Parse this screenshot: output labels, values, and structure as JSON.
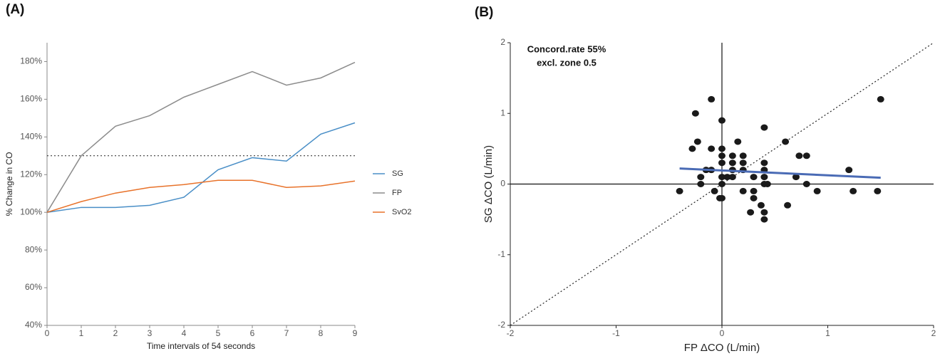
{
  "chart_data": [
    {
      "type": "line",
      "panel_label": "(A)",
      "x_label": "Time intervals of 54 seconds",
      "y_label": "% Change in CO",
      "x": [
        0,
        1,
        2,
        3,
        4,
        5,
        6,
        7,
        8,
        9
      ],
      "series": [
        {
          "name": "SG",
          "color": "#4a8fc7",
          "values": [
            100,
            102.6,
            102.6,
            103.7,
            108,
            122.6,
            129,
            127.2,
            141.5,
            147.5
          ]
        },
        {
          "name": "FP",
          "color": "#8c8c8c",
          "values": [
            100,
            130,
            145.7,
            151.3,
            161.1,
            167.9,
            174.7,
            167.5,
            171.3,
            179.6
          ]
        },
        {
          "name": "SvO2",
          "color": "#e8722a",
          "values": [
            100,
            105.7,
            110.2,
            113.2,
            114.7,
            117,
            117,
            113.2,
            114,
            116.6
          ]
        }
      ],
      "reference_line": 130,
      "xlim": [
        0,
        9
      ],
      "xticks": [
        0,
        1,
        2,
        3,
        4,
        5,
        6,
        7,
        8,
        9
      ],
      "ylim": [
        40,
        190
      ],
      "yticks": [
        {
          "value": 40,
          "label": "40%"
        },
        {
          "value": 60,
          "label": "60%"
        },
        {
          "value": 80,
          "label": "80%"
        },
        {
          "value": 100,
          "label": "100%"
        },
        {
          "value": 120,
          "label": "120%"
        },
        {
          "value": 140,
          "label": "140%"
        },
        {
          "value": 160,
          "label": "160%"
        },
        {
          "value": 180,
          "label": "180%"
        }
      ],
      "legend": "right"
    },
    {
      "type": "scatter",
      "panel_label": "(B)",
      "x_label": "FP ΔCO (L/min)",
      "y_label": "SG ΔCO (L/min)",
      "annotations": [
        "Concord.rate 55%",
        "excl. zone 0.5"
      ],
      "color": "#1a1a1a",
      "x": [
        -0.4,
        -0.25,
        -0.28,
        -0.23,
        -0.2,
        -0.2,
        -0.1,
        -0.1,
        -0.15,
        -0.1,
        -0.07,
        0,
        0,
        0,
        0,
        0,
        0,
        -0.02,
        0,
        0.05,
        0.1,
        0.1,
        0.1,
        0.1,
        0.15,
        0.2,
        0.2,
        0.2,
        0.2,
        0.3,
        0.3,
        0.3,
        0.27,
        0.37,
        0.4,
        0.4,
        0.4,
        0.4,
        0.4,
        0.43,
        0.4,
        0.4,
        0.6,
        0.62,
        0.7,
        0.73,
        0.8,
        0.8,
        0.9,
        1.2,
        1.24,
        1.47,
        1.5
      ],
      "y": [
        -0.1,
        1.0,
        0.5,
        0.6,
        0.1,
        0,
        1.2,
        0.5,
        0.2,
        0.2,
        -0.1,
        0.9,
        0.5,
        0.4,
        0.3,
        0.1,
        0,
        -0.2,
        -0.2,
        0.1,
        0.4,
        0.3,
        0.2,
        0.1,
        0.6,
        0.4,
        0.3,
        0.2,
        -0.1,
        0.1,
        -0.1,
        -0.2,
        -0.4,
        -0.3,
        0.8,
        0.3,
        0.2,
        0.1,
        0,
        0,
        -0.4,
        -0.5,
        0.6,
        -0.3,
        0.1,
        0.4,
        0.4,
        0,
        -0.1,
        0.2,
        -0.1,
        -0.1,
        1.2
      ],
      "regression": {
        "x": [
          -0.4,
          1.5
        ],
        "y": [
          0.22,
          0.09
        ],
        "color": "#4a6bb5"
      },
      "identity_line": true,
      "zero_lines": true,
      "xlim": [
        -2,
        2
      ],
      "xticks": [
        -2,
        -1,
        0,
        1,
        2
      ],
      "ylim": [
        -2,
        2
      ],
      "yticks": [
        -2,
        -1,
        0,
        1,
        2
      ]
    }
  ]
}
